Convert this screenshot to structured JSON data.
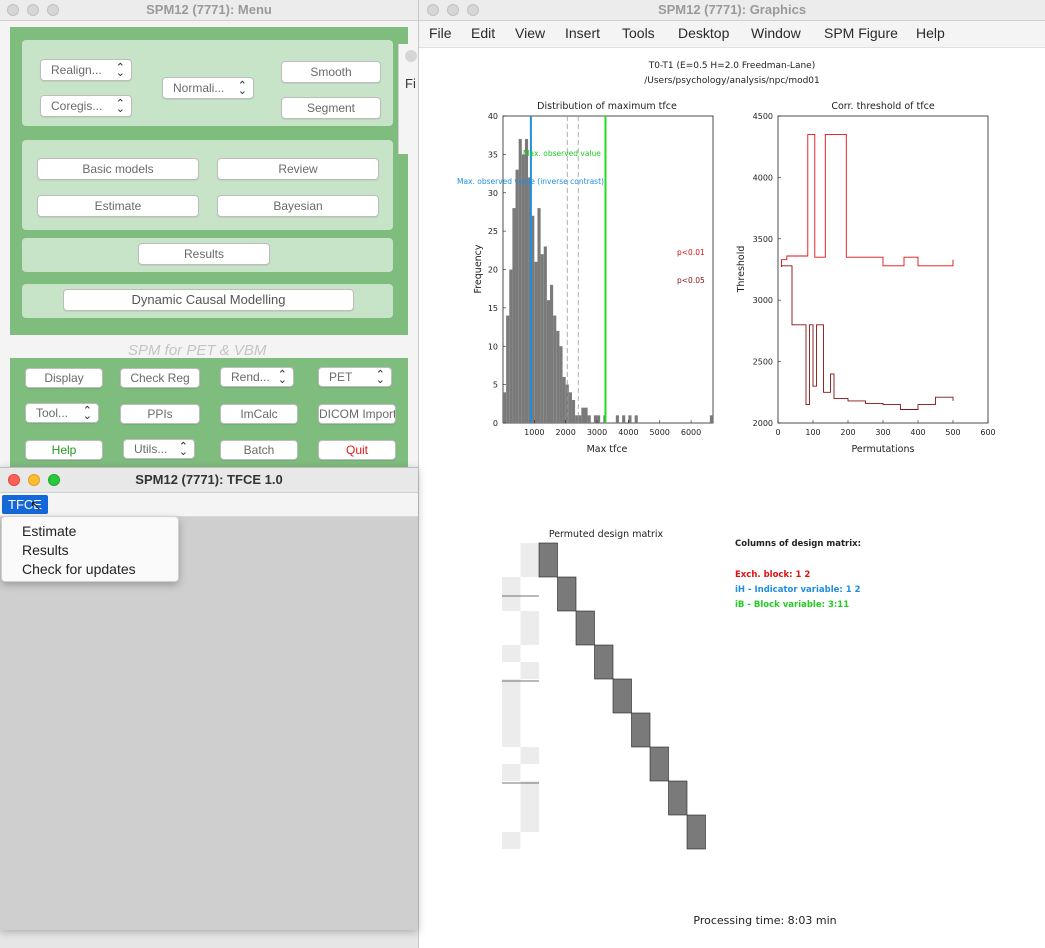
{
  "menu_window": {
    "title": "SPM12 (7771): Menu",
    "spatial": {
      "realign": "Realign...",
      "coregister": "Coregis...",
      "normalise": "Normali...",
      "smooth": "Smooth",
      "segment": "Segment"
    },
    "model": {
      "basic_models": "Basic models",
      "review": "Review",
      "estimate": "Estimate",
      "bayesian": "Bayesian"
    },
    "results": "Results",
    "dcm": "Dynamic Causal Modelling",
    "modality_label": "SPM for PET & VBM",
    "utilities": {
      "display": "Display",
      "check_reg": "Check Reg",
      "render": "Rend...",
      "modality": "PET",
      "toolbox": "Tool...",
      "ppis": "PPIs",
      "imcalc": "ImCalc",
      "dicom_import": "DICOM Import",
      "help": "Help",
      "utils": "Utils...",
      "batch": "Batch",
      "quit": "Quit"
    }
  },
  "graphics_window": {
    "title": "SPM12 (7771): Graphics",
    "menu": [
      "File",
      "Edit",
      "View",
      "Insert",
      "Tools",
      "Desktop",
      "Window",
      "SPM Figure",
      "Help"
    ],
    "header_line1": "T0-T1 (E=0.5 H=2.0 Freedman-Lane)",
    "header_line2": "/Users/psychology/analysis/npc/mod01",
    "hist_annot_obs": "Max. observed value",
    "hist_annot_inv": "Max. observed value (inverse contrast)",
    "hist_p01": "p<0.01",
    "hist_p05": "p<0.05",
    "design_title": "Permuted design matrix",
    "columns_title": "Columns of design matrix:",
    "col_exch": "Exch. block: 1  2",
    "col_ih": "iH - Indicator variable: 1  2",
    "col_ib": "iB - Block variable: 3:11",
    "processing_time": "Processing time: 8:03 min"
  },
  "tfce_window": {
    "title": "SPM12 (7771): TFCE 1.0",
    "menu_label": "TFCE",
    "dropdown": [
      "Estimate",
      "Results",
      "Check for updates"
    ]
  },
  "mid_window": {
    "label": "Fi"
  },
  "colors": {
    "spm_green": "#7fbd7f",
    "obs_line": "#22dd22",
    "inv_line": "#1f8fe0",
    "p01": "#dd1111",
    "p05": "#881111",
    "hist_bar": "#7a7a7a"
  },
  "chart_data": [
    {
      "type": "bar",
      "title": "Distribution of maximum tfce",
      "xlabel": "Max tfce",
      "ylabel": "Frequency",
      "xlim": [
        0,
        6700
      ],
      "ylim": [
        0,
        40
      ],
      "xticks": [
        "1000",
        "2000",
        "3000",
        "4000",
        "5000",
        "6000"
      ],
      "yticks": [
        "0",
        "5",
        "10",
        "15",
        "20",
        "25",
        "30",
        "35",
        "40"
      ],
      "bin_width": 100,
      "bin_starts": [
        0,
        100,
        200,
        300,
        400,
        500,
        600,
        700,
        800,
        900,
        1000,
        1100,
        1200,
        1300,
        1400,
        1500,
        1600,
        1700,
        1800,
        1900,
        2000,
        2100,
        2200,
        2300,
        2400,
        2500,
        2600,
        2700,
        2800,
        2900,
        3000,
        3100,
        3200,
        3300,
        3400,
        3500,
        3600,
        3700,
        3800,
        3900,
        4000,
        4100,
        4200,
        4300,
        4400,
        4500,
        4600,
        4700,
        4800,
        4900,
        5000,
        5100,
        5200,
        5300,
        5400,
        5500,
        5600,
        5700,
        5800,
        5900,
        6000,
        6100,
        6200,
        6300,
        6400,
        6500,
        6600
      ],
      "counts": [
        4,
        14,
        20,
        28,
        33,
        37,
        35,
        37,
        32,
        27,
        21,
        28,
        22,
        23,
        16,
        18,
        14,
        12,
        10,
        6,
        5,
        4,
        3,
        1,
        1,
        2,
        2,
        1,
        0,
        1,
        1,
        0,
        1,
        0,
        0,
        0,
        1,
        0,
        1,
        0,
        1,
        0,
        1,
        0,
        0,
        0,
        0,
        0,
        0,
        0,
        0,
        0,
        0,
        0,
        0,
        0,
        0,
        0,
        0,
        0,
        0,
        0,
        0,
        0,
        0,
        0,
        1
      ],
      "vlines": [
        {
          "name": "Max. observed value",
          "x": 3270,
          "color": "#22dd22"
        },
        {
          "name": "Max. observed value (inverse contrast)",
          "x": 890,
          "color": "#1f8fe0"
        },
        {
          "name": "p<0.01",
          "x": 2400,
          "color": "#999999"
        },
        {
          "name": "p<0.05",
          "x": 2050,
          "color": "#999999"
        }
      ]
    },
    {
      "type": "line",
      "title": "Corr. threshold of tfce",
      "xlabel": "Permutations",
      "ylabel": "Threshold",
      "xlim": [
        0,
        600
      ],
      "ylim": [
        2000,
        4500
      ],
      "xticks": [
        "0",
        "100",
        "200",
        "300",
        "400",
        "500",
        "600"
      ],
      "yticks": [
        "2000",
        "2500",
        "3000",
        "3500",
        "4000",
        "4500"
      ],
      "series": [
        {
          "name": "p<0.01",
          "color": "#dd1111",
          "x": [
            10,
            10,
            25,
            25,
            85,
            85,
            105,
            105,
            135,
            135,
            195,
            195,
            300,
            300,
            360,
            360,
            400,
            400,
            500,
            500
          ],
          "y": [
            3280,
            3330,
            3330,
            3360,
            3360,
            4350,
            4350,
            3350,
            3350,
            4350,
            4350,
            3350,
            3350,
            3280,
            3280,
            3350,
            3350,
            3280,
            3280,
            3330
          ]
        },
        {
          "name": "p<0.05",
          "color": "#881111",
          "x": [
            10,
            10,
            40,
            40,
            80,
            80,
            90,
            90,
            100,
            100,
            110,
            110,
            130,
            130,
            150,
            150,
            160,
            160,
            200,
            200,
            250,
            250,
            300,
            300,
            350,
            350,
            400,
            400,
            450,
            450,
            500,
            500
          ],
          "y": [
            3270,
            3280,
            3280,
            2800,
            2800,
            2150,
            2150,
            2800,
            2800,
            2300,
            2300,
            2800,
            2800,
            2250,
            2250,
            2400,
            2400,
            2200,
            2200,
            2180,
            2180,
            2160,
            2160,
            2150,
            2150,
            2110,
            2110,
            2150,
            2150,
            2210,
            2210,
            2180
          ]
        }
      ]
    }
  ]
}
